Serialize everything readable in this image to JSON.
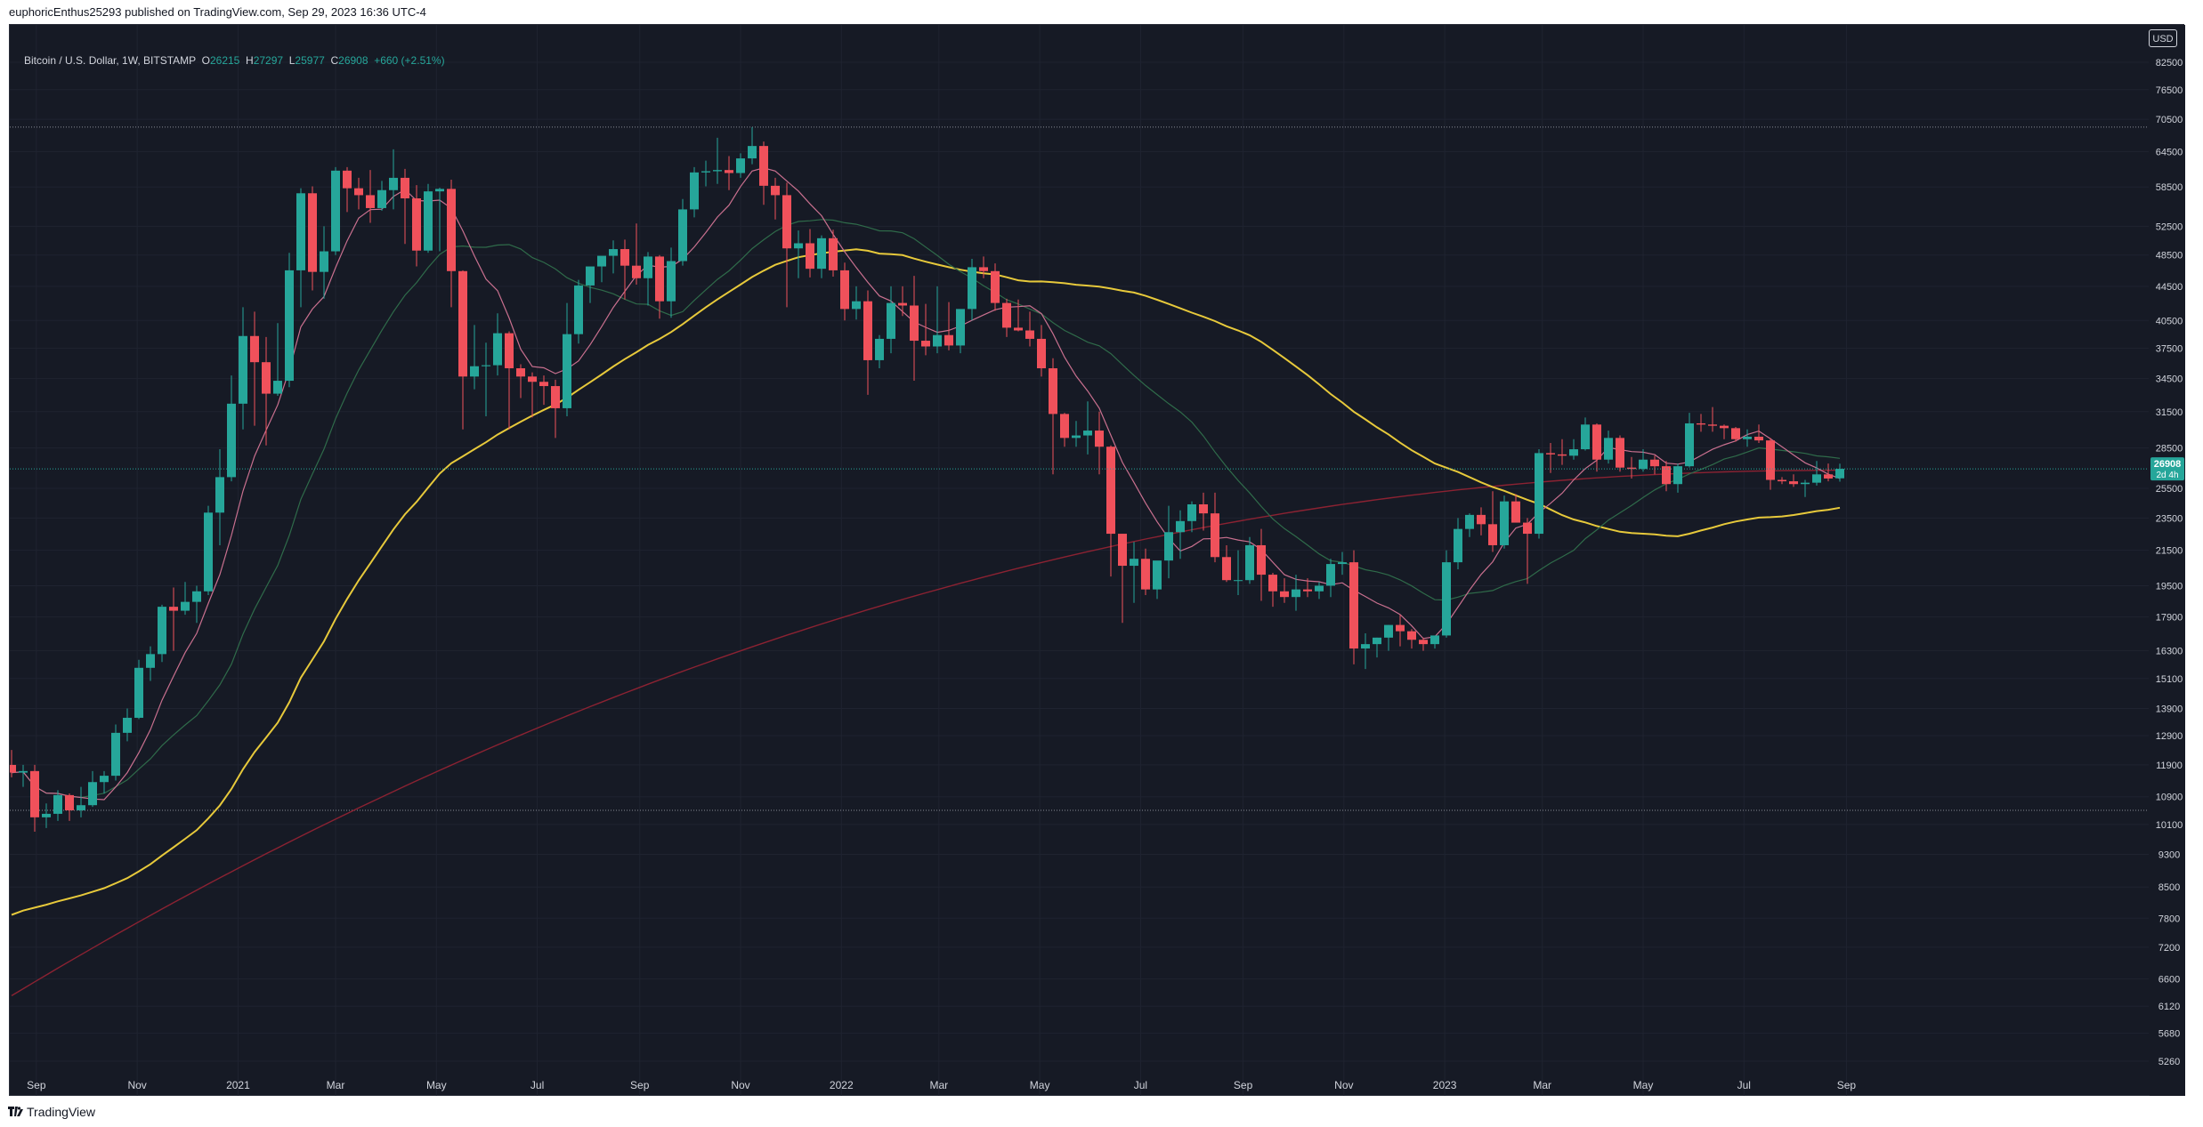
{
  "header": {
    "published_text": "euphoricEnthus25293 published on TradingView.com, Sep 29, 2023 16:36 UTC-4"
  },
  "legend": {
    "symbol": "Bitcoin / U.S. Dollar, 1W, BITSTAMP",
    "o_label": "O",
    "o_value": "26215",
    "h_label": "H",
    "h_value": "27297",
    "l_label": "L",
    "l_value": "25977",
    "c_label": "C",
    "c_value": "26908",
    "change": "+660 (+2.51%)"
  },
  "currency": "USD",
  "footer": {
    "brand": "TradingView"
  },
  "price_label": {
    "value": "26908",
    "countdown": "2d 4h",
    "color": "#26a69a"
  },
  "colors": {
    "up": "#26a69a",
    "down": "#f0515b",
    "background": "#161a25",
    "ma_fast": "#c9708f",
    "ma_mid": "#2f6b4a",
    "ma_slow": "#e7c93b",
    "ma_long": "#8b2232"
  },
  "chart_data": {
    "type": "candlestick",
    "timeframe": "1W",
    "y_scale": "log",
    "x_ticks": [
      "Sep",
      "Nov",
      "2021",
      "Mar",
      "May",
      "Jul",
      "Sep",
      "Nov",
      "2022",
      "Mar",
      "May",
      "Jul",
      "Sep",
      "Nov",
      "2023",
      "Mar",
      "May",
      "Jul",
      "Sep"
    ],
    "y_ticks": [
      82500,
      76500,
      70500,
      64500,
      58500,
      52500,
      48500,
      44500,
      40500,
      37500,
      34500,
      31500,
      28500,
      25500,
      23500,
      21500,
      19500,
      17900,
      16300,
      15100,
      13900,
      12900,
      11900,
      10900,
      10100,
      9300,
      8500,
      7800,
      7200,
      6600,
      6120,
      5680,
      5260
    ],
    "horizontal_levels": [
      69000,
      10500
    ],
    "series": [
      {
        "name": "BTCUSD",
        "first_week": "2020-08-17",
        "ohlc": [
          [
            11900,
            12400,
            11500,
            11650
          ],
          [
            11650,
            11900,
            11200,
            11700
          ],
          [
            11700,
            11900,
            9900,
            10300
          ],
          [
            10300,
            10700,
            10000,
            10400
          ],
          [
            10400,
            11100,
            10200,
            10950
          ],
          [
            10950,
            11000,
            10200,
            10500
          ],
          [
            10500,
            11200,
            10300,
            10650
          ],
          [
            10650,
            11700,
            10600,
            11350
          ],
          [
            11350,
            11700,
            11000,
            11550
          ],
          [
            11550,
            13300,
            11400,
            13000
          ],
          [
            13000,
            13900,
            12700,
            13550
          ],
          [
            13550,
            15900,
            13500,
            15550
          ],
          [
            15550,
            16500,
            15000,
            16150
          ],
          [
            16150,
            18500,
            15800,
            18400
          ],
          [
            18400,
            19400,
            16300,
            18200
          ],
          [
            18200,
            19700,
            18000,
            18650
          ],
          [
            18650,
            19500,
            17600,
            19200
          ],
          [
            19200,
            24300,
            19000,
            23850
          ],
          [
            23850,
            28400,
            21800,
            26300
          ],
          [
            26300,
            34800,
            26000,
            32200
          ],
          [
            32200,
            42000,
            30000,
            38800
          ],
          [
            38800,
            41500,
            30300,
            36100
          ],
          [
            36100,
            38700,
            28700,
            33100
          ],
          [
            33100,
            40200,
            32900,
            34300
          ],
          [
            34300,
            48800,
            33700,
            46500
          ],
          [
            46500,
            58300,
            42000,
            57500
          ],
          [
            57500,
            58600,
            44000,
            46300
          ],
          [
            46300,
            52500,
            43000,
            49000
          ],
          [
            49000,
            61800,
            48500,
            61200
          ],
          [
            61200,
            61800,
            54600,
            58300
          ],
          [
            58300,
            60000,
            55000,
            57200
          ],
          [
            57200,
            61300,
            53000,
            55200
          ],
          [
            55200,
            59500,
            54800,
            58000
          ],
          [
            58000,
            64900,
            55000,
            60000
          ],
          [
            60000,
            61500,
            50000,
            56700
          ],
          [
            56700,
            58800,
            47000,
            49100
          ],
          [
            49100,
            59000,
            48800,
            57800
          ],
          [
            57800,
            58400,
            49000,
            58200
          ],
          [
            58200,
            59700,
            42000,
            46400
          ],
          [
            46400,
            46500,
            30000,
            34700
          ],
          [
            34700,
            40000,
            33500,
            35700
          ],
          [
            35700,
            38100,
            31100,
            35800
          ],
          [
            35800,
            41300,
            34800,
            39100
          ],
          [
            39100,
            39300,
            30000,
            35500
          ],
          [
            35500,
            35900,
            32700,
            34700
          ],
          [
            34700,
            35100,
            31000,
            34200
          ],
          [
            34200,
            34800,
            32100,
            33800
          ],
          [
            33800,
            34400,
            29300,
            31800
          ],
          [
            31800,
            42500,
            31100,
            39000
          ],
          [
            39000,
            45300,
            38000,
            44600
          ],
          [
            44600,
            46500,
            42500,
            47000
          ],
          [
            47000,
            48200,
            45000,
            48400
          ],
          [
            48400,
            50500,
            46100,
            49300
          ],
          [
            49300,
            50600,
            42900,
            47100
          ],
          [
            47100,
            52900,
            44700,
            45500
          ],
          [
            45500,
            48900,
            42200,
            48300
          ],
          [
            48300,
            48500,
            40700,
            42700
          ],
          [
            42700,
            49500,
            40800,
            47700
          ],
          [
            47700,
            56600,
            47100,
            55000
          ],
          [
            55000,
            61800,
            53800,
            60900
          ],
          [
            60900,
            62900,
            58600,
            61100
          ],
          [
            61100,
            67000,
            59000,
            61300
          ],
          [
            61300,
            63700,
            58000,
            60800
          ],
          [
            60800,
            64200,
            60000,
            63300
          ],
          [
            63300,
            69000,
            62300,
            65500
          ],
          [
            65500,
            66300,
            55700,
            58700
          ],
          [
            58700,
            60000,
            53500,
            57200
          ],
          [
            57200,
            59200,
            42000,
            49400
          ],
          [
            49400,
            51900,
            45500,
            50100
          ],
          [
            50100,
            52100,
            45600,
            46700
          ],
          [
            46700,
            51200,
            45500,
            50800
          ],
          [
            50800,
            52000,
            45700,
            46500
          ],
          [
            46500,
            47500,
            40500,
            41800
          ],
          [
            41800,
            44500,
            40600,
            42700
          ],
          [
            42700,
            44000,
            33000,
            36300
          ],
          [
            36300,
            38900,
            35500,
            38500
          ],
          [
            38500,
            44500,
            37000,
            42500
          ],
          [
            42500,
            44500,
            41000,
            42200
          ],
          [
            42200,
            45800,
            34300,
            38300
          ],
          [
            38300,
            42400,
            36800,
            37700
          ],
          [
            37700,
            44500,
            37000,
            38900
          ],
          [
            38900,
            42600,
            37300,
            37800
          ],
          [
            37800,
            41700,
            37000,
            41800
          ],
          [
            41800,
            48000,
            40500,
            46900
          ],
          [
            46900,
            48300,
            45500,
            46400
          ],
          [
            46400,
            47400,
            41600,
            42500
          ],
          [
            42500,
            43000,
            38700,
            39700
          ],
          [
            39700,
            42900,
            39300,
            39400
          ],
          [
            39400,
            41500,
            37700,
            38500
          ],
          [
            38500,
            40000,
            34700,
            35500
          ],
          [
            35500,
            36500,
            26500,
            31300
          ],
          [
            31300,
            31400,
            28600,
            29300
          ],
          [
            29300,
            30700,
            28600,
            29500
          ],
          [
            29500,
            32400,
            28000,
            29900
          ],
          [
            29900,
            31500,
            26500,
            28600
          ],
          [
            28600,
            28700,
            20000,
            22500
          ],
          [
            22500,
            22500,
            17600,
            20600
          ],
          [
            20600,
            22000,
            18600,
            21000
          ],
          [
            21000,
            21600,
            19000,
            19300
          ],
          [
            19300,
            20800,
            18800,
            20900
          ],
          [
            20900,
            24300,
            19900,
            22600
          ],
          [
            22600,
            24000,
            21000,
            23300
          ],
          [
            23300,
            24600,
            22600,
            24400
          ],
          [
            24400,
            25200,
            22700,
            23800
          ],
          [
            23800,
            25200,
            20800,
            21100
          ],
          [
            21100,
            21800,
            19700,
            19800
          ],
          [
            19800,
            21500,
            19000,
            19800
          ],
          [
            19800,
            22300,
            19600,
            21800
          ],
          [
            21800,
            22800,
            18700,
            20100
          ],
          [
            20100,
            20200,
            18400,
            19200
          ],
          [
            19200,
            19900,
            18600,
            18900
          ],
          [
            18900,
            20100,
            18200,
            19300
          ],
          [
            19300,
            19900,
            18900,
            19200
          ],
          [
            19200,
            19700,
            18800,
            19500
          ],
          [
            19500,
            21000,
            18900,
            20700
          ],
          [
            20700,
            21400,
            20100,
            20800
          ],
          [
            20800,
            21500,
            15700,
            16400
          ],
          [
            16400,
            17100,
            15500,
            16600
          ],
          [
            16600,
            16900,
            16000,
            16900
          ],
          [
            16900,
            17500,
            16300,
            17500
          ],
          [
            17500,
            18000,
            16500,
            17200
          ],
          [
            17200,
            17300,
            16400,
            16800
          ],
          [
            16800,
            16900,
            16300,
            16600
          ],
          [
            16600,
            16800,
            16400,
            17000
          ],
          [
            17000,
            21500,
            16900,
            20800
          ],
          [
            20800,
            23500,
            20400,
            22800
          ],
          [
            22800,
            23800,
            22300,
            23700
          ],
          [
            23700,
            24200,
            22400,
            23100
          ],
          [
            23100,
            25300,
            21400,
            21800
          ],
          [
            21800,
            25000,
            21600,
            24600
          ],
          [
            24600,
            25100,
            23300,
            23200
          ],
          [
            23200,
            23500,
            19600,
            22500
          ],
          [
            22500,
            28400,
            22200,
            28100
          ],
          [
            28100,
            28900,
            26600,
            28000
          ],
          [
            28000,
            29200,
            27200,
            27900
          ],
          [
            27900,
            29200,
            27600,
            28400
          ],
          [
            28400,
            31000,
            28300,
            30400
          ],
          [
            30400,
            30500,
            26700,
            27600
          ],
          [
            27600,
            29900,
            27300,
            29300
          ],
          [
            29300,
            29500,
            26700,
            27000
          ],
          [
            27000,
            27800,
            26200,
            26900
          ],
          [
            26900,
            28400,
            26700,
            27600
          ],
          [
            27600,
            27900,
            26500,
            27100
          ],
          [
            27100,
            27500,
            25300,
            25800
          ],
          [
            25800,
            27300,
            25200,
            27100
          ],
          [
            27100,
            31400,
            27000,
            30500
          ],
          [
            30500,
            31300,
            29800,
            30400
          ],
          [
            30400,
            31900,
            29800,
            30300
          ],
          [
            30300,
            30400,
            29200,
            30100
          ],
          [
            30100,
            30200,
            29000,
            29200
          ],
          [
            29200,
            30000,
            28600,
            29400
          ],
          [
            29400,
            30400,
            28900,
            29100
          ],
          [
            29100,
            29300,
            25400,
            26100
          ],
          [
            26100,
            26300,
            25800,
            26000
          ],
          [
            26000,
            26500,
            25600,
            25800
          ],
          [
            25800,
            26100,
            24900,
            25900
          ],
          [
            25900,
            27500,
            25700,
            26500
          ],
          [
            26500,
            27300,
            26000,
            26200
          ],
          [
            26215,
            27297,
            25977,
            26908
          ]
        ]
      },
      {
        "name": "MA fast",
        "color": "#c9708f"
      },
      {
        "name": "MA mid",
        "color": "#2f6b4a"
      },
      {
        "name": "MA slow",
        "color": "#e7c93b"
      },
      {
        "name": "MA long",
        "color": "#8b2232"
      }
    ]
  }
}
